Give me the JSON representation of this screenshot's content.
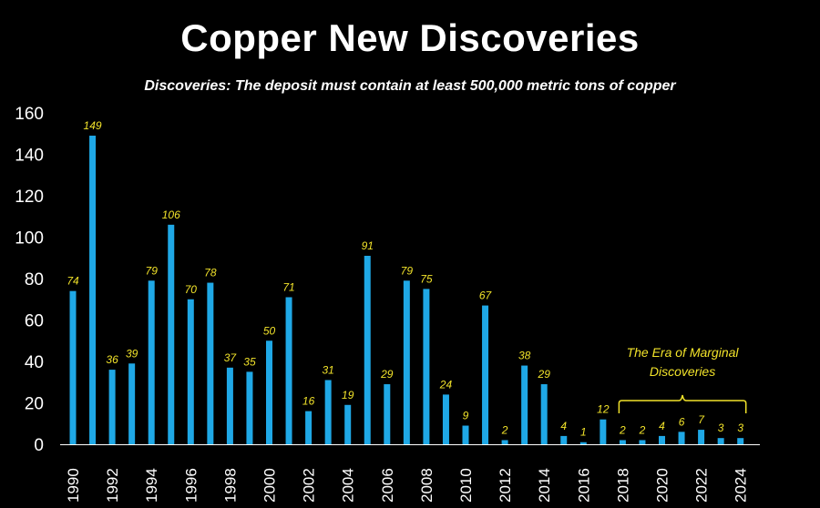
{
  "chart_data": {
    "type": "bar",
    "title": "Copper New Discoveries",
    "subtitle": "Discoveries: The deposit must contain at least 500,000 metric tons of copper",
    "categories": [
      "1990",
      "1991",
      "1992",
      "1993",
      "1994",
      "1995",
      "1996",
      "1997",
      "1998",
      "1999",
      "2000",
      "2001",
      "2002",
      "2003",
      "2004",
      "2005",
      "2006",
      "2007",
      "2008",
      "2009",
      "2010",
      "2011",
      "2012",
      "2013",
      "2014",
      "2015",
      "2016",
      "2017",
      "2018",
      "2019",
      "2020",
      "2021",
      "2022",
      "2023",
      "2024"
    ],
    "x_tick_labels": [
      "1990",
      "1992",
      "1994",
      "1996",
      "1998",
      "2000",
      "2002",
      "2004",
      "2006",
      "2008",
      "2010",
      "2012",
      "2014",
      "2016",
      "2018",
      "2020",
      "2022",
      "2024"
    ],
    "values": [
      74,
      149,
      36,
      39,
      79,
      106,
      70,
      78,
      37,
      35,
      50,
      71,
      16,
      31,
      19,
      91,
      29,
      79,
      75,
      24,
      9,
      67,
      2,
      38,
      29,
      4,
      1,
      12,
      2,
      2,
      4,
      6,
      7,
      3,
      3
    ],
    "y_ticks": [
      "0",
      "20",
      "40",
      "60",
      "80",
      "100",
      "120",
      "140",
      "160"
    ],
    "ylim": [
      0,
      160
    ],
    "grid": false,
    "legend": "none",
    "annotation": {
      "text_line1": "The Era of Marginal",
      "text_line2": "Discoveries",
      "from": "2018",
      "to": "2024"
    },
    "colors": {
      "background": "#000000",
      "bar": "#1fa8e6",
      "data_label": "#f2e32a",
      "axis_text": "#ffffff",
      "annotation": "#f2e32a"
    }
  }
}
